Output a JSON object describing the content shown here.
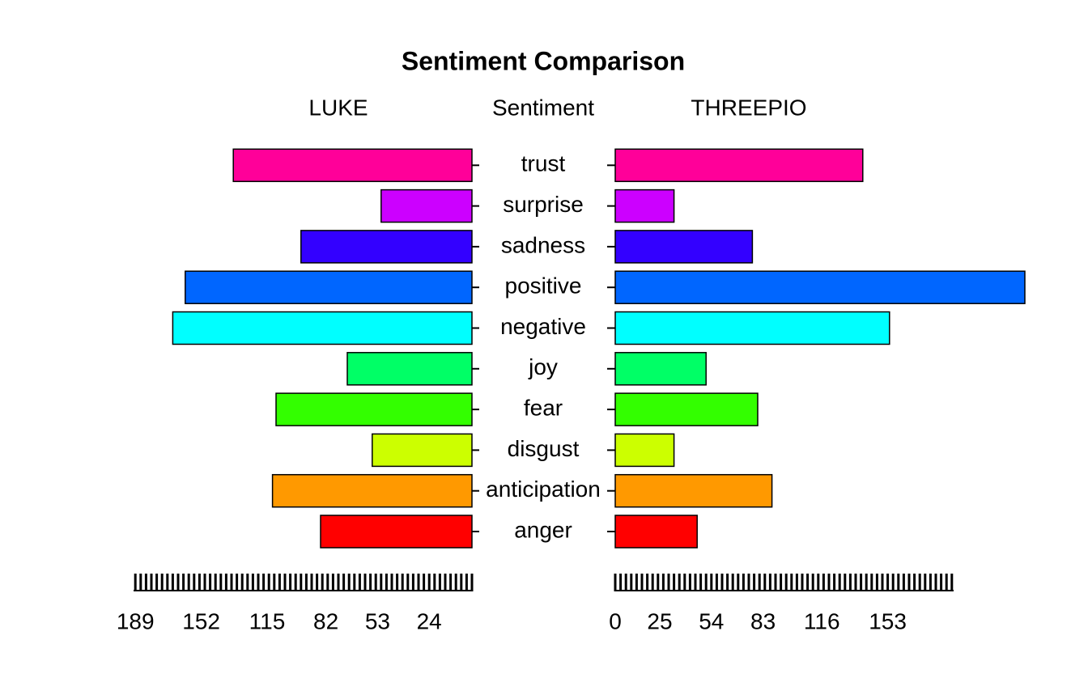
{
  "chart_data": {
    "type": "pyramid",
    "title": "Sentiment Comparison",
    "center_label": "Sentiment",
    "categories": [
      "anger",
      "anticipation",
      "disgust",
      "fear",
      "joy",
      "negative",
      "positive",
      "sadness",
      "surprise",
      "trust"
    ],
    "colors": [
      "#ff0000",
      "#ff9900",
      "#ccff00",
      "#33ff00",
      "#00ff66",
      "#00ffff",
      "#0066ff",
      "#3300ff",
      "#cc00ff",
      "#ff0099"
    ],
    "series": [
      {
        "name": "LUKE",
        "values": [
          85,
          112,
          56,
          110,
          70,
          168,
          161,
          96,
          51,
          134
        ]
      },
      {
        "name": "THREEPIO",
        "values": [
          46,
          88,
          33,
          80,
          51,
          154,
          230,
          77,
          33,
          139
        ]
      }
    ],
    "xlim": [
      0,
      190
    ],
    "left_xticks": [
      189,
      152,
      115,
      82,
      53,
      24
    ],
    "right_xticks": [
      0,
      25,
      54,
      83,
      116,
      153
    ],
    "minor_xticks": [
      0,
      3,
      6,
      9,
      12,
      15,
      18,
      21,
      24,
      27,
      30,
      33,
      36,
      39,
      42,
      45,
      48,
      51,
      54,
      57,
      60,
      63,
      66,
      69,
      72,
      75,
      78,
      81,
      84,
      87,
      90,
      93,
      96,
      99,
      102,
      105,
      108,
      111,
      114,
      117,
      120,
      123,
      126,
      129,
      132,
      135,
      138,
      141,
      144,
      147,
      150,
      153,
      156,
      159,
      162,
      165,
      168,
      171,
      174,
      177,
      180,
      183,
      186,
      189
    ]
  }
}
